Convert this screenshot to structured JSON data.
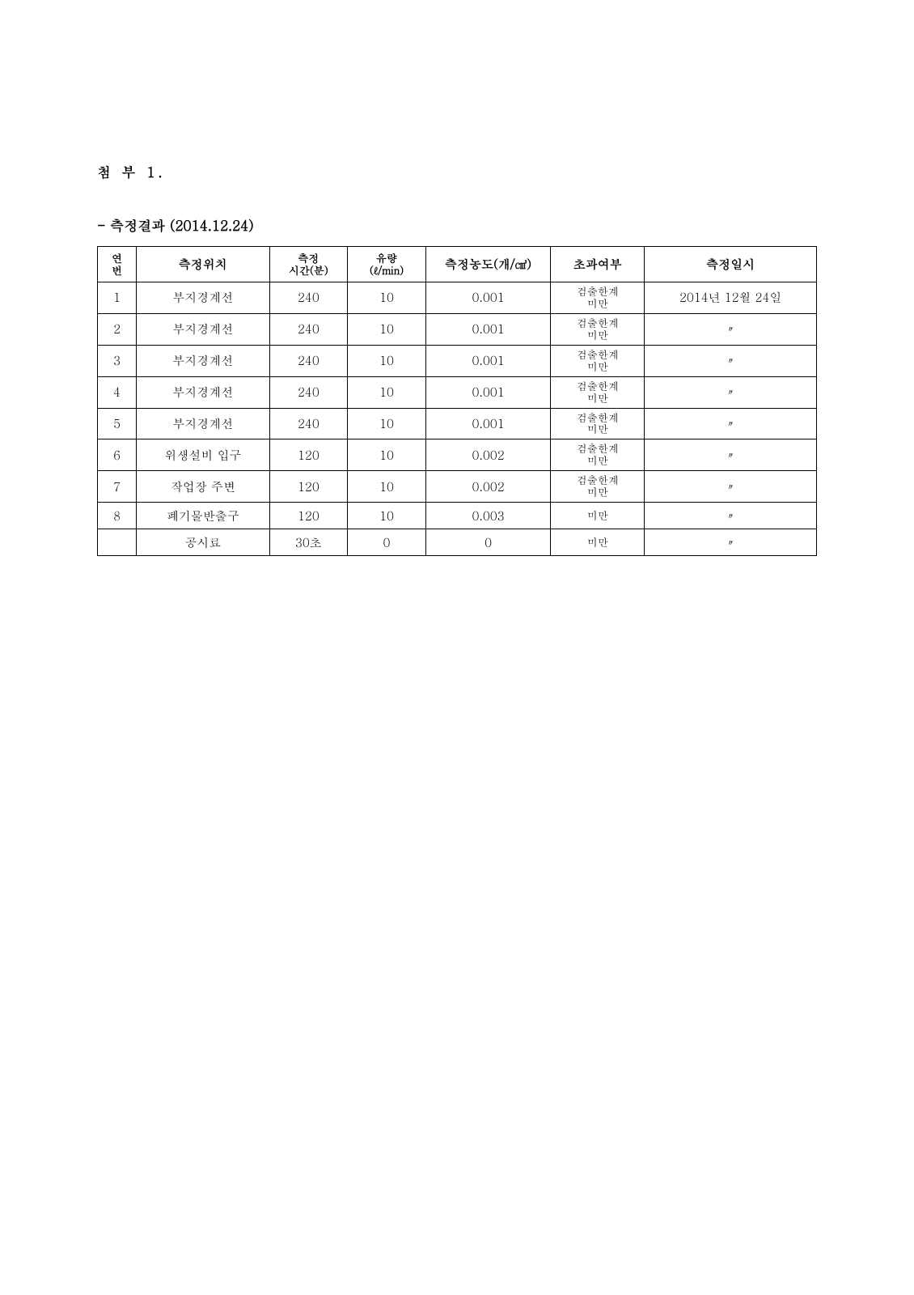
{
  "attachment_label": "첨 부 1.",
  "subtitle": "- 측정결과 (2014.12.24)",
  "columns": {
    "num": {
      "l1": "연",
      "l2": "번"
    },
    "location": "측정위치",
    "time": {
      "l1": "측정",
      "l2": "시간(분)"
    },
    "flow": {
      "l1": "유량",
      "l2": "(ℓ/min)"
    },
    "conc": "측정농도(개/㎤)",
    "exceed": "초과여부",
    "date": "측정일시"
  },
  "rows": [
    {
      "num": "1",
      "location": "부지경계선",
      "time": "240",
      "flow": "10",
      "conc": "0.001",
      "exceed1": "검출한계",
      "exceed2": "미만",
      "date": "2014년 12월 24일"
    },
    {
      "num": "2",
      "location": "부지경계선",
      "time": "240",
      "flow": "10",
      "conc": "0.001",
      "exceed1": "검출한계",
      "exceed2": "미만",
      "date": "〃"
    },
    {
      "num": "3",
      "location": "부지경계선",
      "time": "240",
      "flow": "10",
      "conc": "0.001",
      "exceed1": "검출한계",
      "exceed2": "미만",
      "date": "〃"
    },
    {
      "num": "4",
      "location": "부지경계선",
      "time": "240",
      "flow": "10",
      "conc": "0.001",
      "exceed1": "검출한계",
      "exceed2": "미만",
      "date": "〃"
    },
    {
      "num": "5",
      "location": "부지경계선",
      "time": "240",
      "flow": "10",
      "conc": "0.001",
      "exceed1": "검출한계",
      "exceed2": "미만",
      "date": "〃"
    },
    {
      "num": "6",
      "location": "위생설비 입구",
      "time": "120",
      "flow": "10",
      "conc": "0.002",
      "exceed1": "검출한계",
      "exceed2": "미만",
      "date": "〃"
    },
    {
      "num": "7",
      "location": "작업장 주변",
      "time": "120",
      "flow": "10",
      "conc": "0.002",
      "exceed1": "검출한계",
      "exceed2": "미만",
      "date": "〃"
    },
    {
      "num": "8",
      "location": "폐기물반출구",
      "time": "120",
      "flow": "10",
      "conc": "0.003",
      "exceed1": "미만",
      "exceed2": "",
      "date": "〃"
    },
    {
      "num": "",
      "location": "공시료",
      "time": "30초",
      "flow": "0",
      "conc": "0",
      "exceed1": "미만",
      "exceed2": "",
      "date": "〃"
    }
  ]
}
